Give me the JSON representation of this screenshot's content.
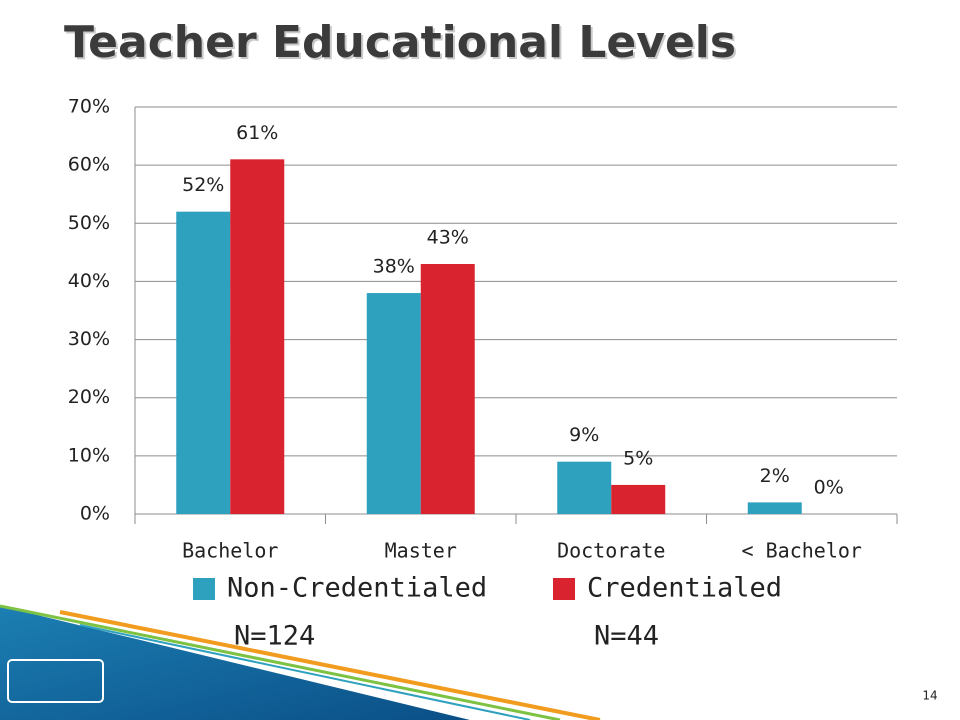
{
  "chart_data": {
    "type": "bar",
    "title": "Teacher Educational Levels",
    "categories": [
      "Bachelor",
      "Master",
      "Doctorate",
      "< Bachelor"
    ],
    "series": [
      {
        "name": "Non-Credentialed",
        "color": "#2ea1bf",
        "values": [
          52,
          38,
          9,
          2
        ],
        "value_labels": [
          "52%",
          "38%",
          "9%",
          "2%"
        ],
        "note": "N=124"
      },
      {
        "name": "Credentialed",
        "color": "#d9232e",
        "values": [
          61,
          43,
          5,
          0
        ],
        "value_labels": [
          "61%",
          "43%",
          "5%",
          "0%"
        ],
        "note": "N=44"
      }
    ],
    "ylim": [
      0,
      70
    ],
    "yticks": [
      {
        "value": 0,
        "label": "0%"
      },
      {
        "value": 10,
        "label": "10%"
      },
      {
        "value": 20,
        "label": "20%"
      },
      {
        "value": 30,
        "label": "30%"
      },
      {
        "value": 40,
        "label": "40%"
      },
      {
        "value": 50,
        "label": "50%"
      },
      {
        "value": 60,
        "label": "60%"
      },
      {
        "value": 70,
        "label": "70%"
      }
    ],
    "grid": true,
    "legend": "bottom"
  },
  "slide": {
    "number": "14"
  }
}
